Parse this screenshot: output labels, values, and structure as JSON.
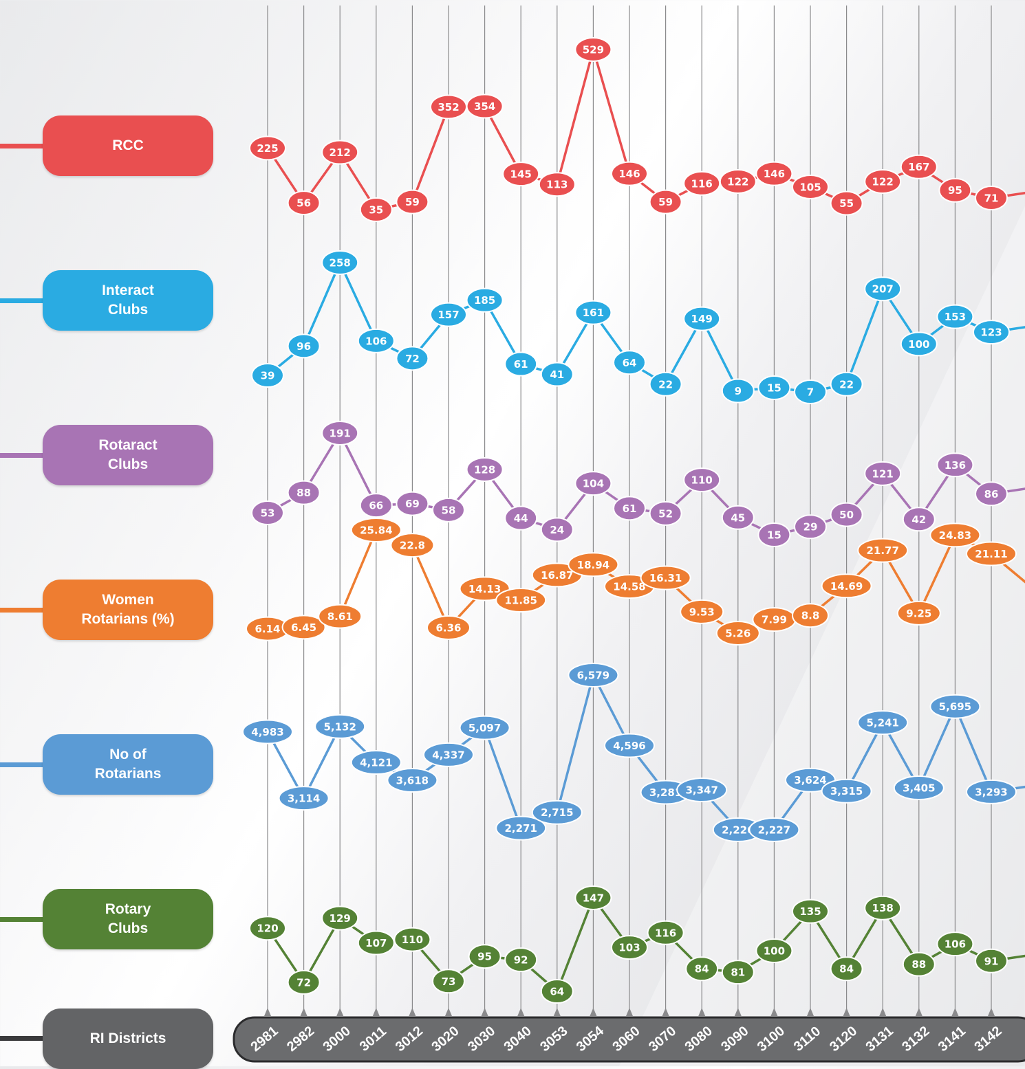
{
  "chart_data": {
    "type": "line",
    "x": [
      "2981",
      "2982",
      "3000",
      "3011",
      "3012",
      "3020",
      "3030",
      "3040",
      "3053",
      "3054",
      "3060",
      "3070",
      "3080",
      "3090",
      "3100",
      "3110",
      "3120",
      "3131",
      "3132",
      "3141",
      "3142"
    ],
    "series": [
      {
        "name": "RCC",
        "color": "#e94f50",
        "values": [
          225,
          56,
          212,
          35,
          59,
          352,
          354,
          145,
          113,
          529,
          146,
          59,
          116,
          122,
          146,
          105,
          55,
          122,
          167,
          95,
          71
        ]
      },
      {
        "name": "Interact\nClubs",
        "color": "#2aabe2",
        "values": [
          39,
          96,
          258,
          106,
          72,
          157,
          185,
          61,
          41,
          161,
          64,
          22,
          149,
          9,
          15,
          7,
          22,
          207,
          100,
          153,
          123
        ]
      },
      {
        "name": "Rotaract\nClubs",
        "color": "#a874b4",
        "values": [
          53,
          88,
          191,
          66,
          69,
          58,
          128,
          44,
          24,
          104,
          61,
          52,
          110,
          45,
          15,
          29,
          50,
          121,
          42,
          136,
          86
        ]
      },
      {
        "name": "Women\nRotarians (%)",
        "color": "#ee7d31",
        "values": [
          6.14,
          6.45,
          8.61,
          25.84,
          22.8,
          6.36,
          14.13,
          11.85,
          16.87,
          18.94,
          14.58,
          16.31,
          9.53,
          5.26,
          7.99,
          8.8,
          14.69,
          21.77,
          9.25,
          24.83,
          21.11
        ]
      },
      {
        "name": "No of\nRotarians",
        "color": "#5b9bd5",
        "values": [
          4983,
          3114,
          5132,
          4121,
          3618,
          4337,
          5097,
          2271,
          2715,
          6579,
          4596,
          3281,
          3347,
          2226,
          2227,
          3624,
          3315,
          5241,
          3405,
          5695,
          3293
        ]
      },
      {
        "name": "Rotary\nClubs",
        "color": "#548235",
        "values": [
          120,
          72,
          129,
          107,
          110,
          73,
          95,
          92,
          64,
          147,
          103,
          116,
          84,
          81,
          100,
          135,
          84,
          138,
          88,
          106,
          91
        ]
      }
    ],
    "axis_title": "RI Districts",
    "axis_color": "#636466"
  }
}
